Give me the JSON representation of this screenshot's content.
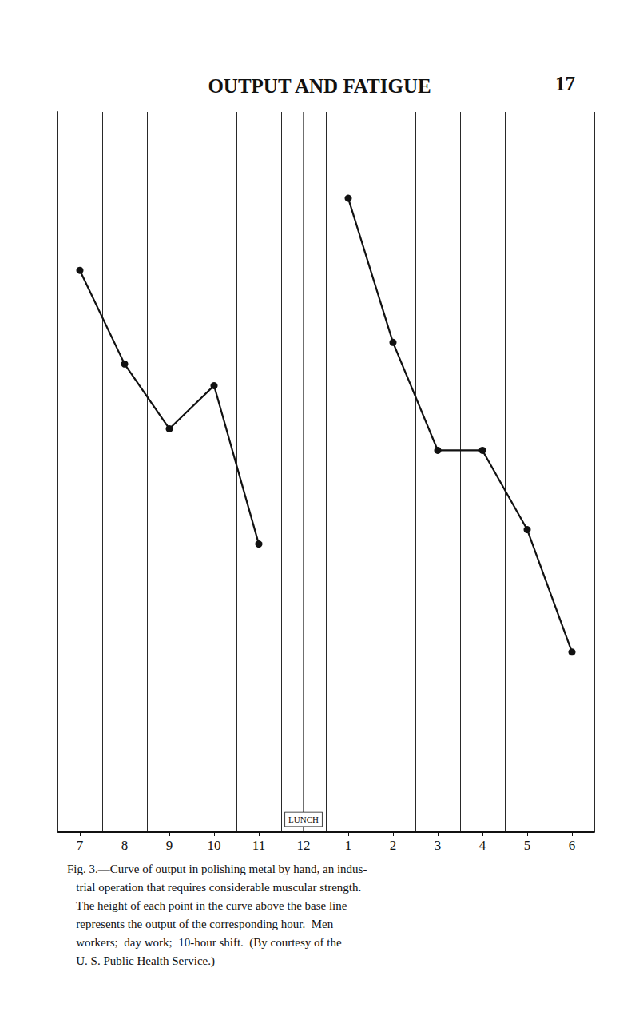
{
  "chart_data": {
    "type": "line",
    "title": "OUTPUT AND FATIGUE",
    "page_number": "17",
    "categories": [
      "7",
      "8",
      "9",
      "10",
      "11",
      "12",
      "1",
      "2",
      "3",
      "4",
      "5",
      "6"
    ],
    "series": [
      {
        "color": "#111111",
        "marker": "circle",
        "values": [
          78,
          65,
          56,
          62,
          40,
          null,
          null,
          null,
          null,
          null,
          null,
          null
        ]
      },
      {
        "color": "#111111",
        "marker": "circle",
        "values": [
          null,
          null,
          null,
          null,
          null,
          null,
          88,
          68,
          53,
          53,
          42,
          25
        ]
      }
    ],
    "ylim": [
      0,
      100
    ],
    "tick_labels": "x",
    "grid": true,
    "annotations": [
      {
        "text": "LUNCH",
        "x": "12"
      }
    ],
    "caption": [
      "Fig. 3.—Curve of output in polishing metal by hand, an indus-",
      "   trial operation that requires considerable muscular strength.",
      "   The height of each point in the curve above the base line",
      "   represents the output of the corresponding hour.  Men",
      "   workers;  day work;  10-hour shift.  (By courtesy of the",
      "   U. S. Public Health Service.)"
    ]
  }
}
